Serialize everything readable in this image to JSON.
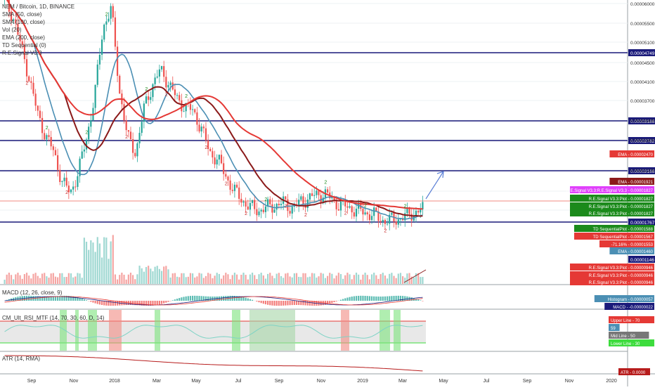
{
  "legend": [
    "NEM / Bitcoin, 1D, BINANCE",
    "SMA (50, close)",
    "SMA (100, close)",
    "Vol (20)",
    "EMA (200, close)",
    "TD Sequential (0)",
    "R.E.Signal V3.3"
  ],
  "macd_legend": "MACD (12, 26, close, 9)",
  "rsi_legend": "CM_Ult_RSI_MTF (14, 70, 30, 60, D, 14)",
  "atr_legend": "ATR (14, RMA)",
  "colors": {
    "up": "#26a69a",
    "down": "#ef5350",
    "hline": "#1a1a7a",
    "sma50": "#4b8fb4",
    "sma100": "#8b1a1a",
    "ema200": "#e53935",
    "rsi": "#7ed3c5"
  },
  "chart_data": {
    "type": "candlestick",
    "x_ticks": [
      "Sep",
      "Nov",
      "2018",
      "Mar",
      "May",
      "Jul",
      "Sep",
      "Nov",
      "2019",
      "Mar",
      "May",
      "Jul",
      "Sep",
      "Nov",
      "2020"
    ],
    "y_ticks": [
      "0.00006000",
      "0.00005500",
      "0.00005100",
      "0.00004500",
      "0.00004100",
      "0.00003700",
      "0.00003300",
      "0.00002900",
      "0.00002200",
      "0.00001800",
      "0.00001400"
    ],
    "horizontal_levels": [
      "0.00004749",
      "0.00003186",
      "0.00002782",
      "0.00002166",
      "0.00001767",
      "0.00001146"
    ],
    "price_labels": [
      {
        "text": "EMA - 0.00002470",
        "color": "#e53935"
      },
      {
        "text": "EMA - 0.00001921",
        "color": "#8b1a1a"
      },
      {
        "text": "R.E.Signal V3.3:R.E.Signal V3.3 - 0.00001827",
        "color": "#e040fb"
      },
      {
        "text": "R.E.Signal V3.3:Plot - 0.00001827",
        "color": "#1b8a1b"
      },
      {
        "text": "R.E.Signal V3.3:Plot - 0.00001827",
        "color": "#1b8a1b"
      },
      {
        "text": "R.E.Signal V3.3:Plot - 0.00001827",
        "color": "#1b8a1b"
      },
      {
        "text": "TD SequentialPlot - 0.00001588",
        "color": "#1b8a1b"
      },
      {
        "text": "TD SequentialPlot - 0.00001567",
        "color": "#e53935"
      },
      {
        "text": "-71.16% - 0.00001553",
        "color": "#e53935"
      },
      {
        "text": "EMA - 0.00001460",
        "color": "#4b8fb4"
      },
      {
        "text": "R.E.Signal V3.3:Plot - 0.00000946",
        "color": "#e53935"
      },
      {
        "text": "R.E.Signal V3.3:Plot - 0.00000946",
        "color": "#e53935"
      },
      {
        "text": "R.E.Signal V3.3:Plot - 0.00000946",
        "color": "#e53935"
      }
    ],
    "macd_labels": [
      {
        "text": "Histogram - 0.00000057",
        "color": "#4b8fb4"
      },
      {
        "text": "MACD - -0.00000022",
        "color": "#1a1a7a"
      }
    ],
    "rsi_labels": [
      {
        "text": "Upper Line - 70",
        "color": "#e53935"
      },
      {
        "text": "59",
        "color": "#4b8fb4"
      },
      {
        "text": "Mid Line - 50",
        "color": "#777777"
      },
      {
        "text": "Lower Line - 30",
        "color": "#3ddc3d"
      }
    ],
    "atr_labels": [
      {
        "text": "ATR - 0.0000",
        "color": "#b71c1c"
      }
    ],
    "candle_close_series": [
      6.1e-05,
      5.85e-05,
      5.2e-05,
      4.55e-05,
      3.8e-05,
      3.35e-05,
      3e-05,
      2.4e-05,
      2.15e-05,
      2.6e-05,
      3.3e-05,
      4.2e-05,
      5.6e-05,
      6e-05,
      4.3e-05,
      3.3e-05,
      3e-05,
      3.9e-05,
      4.4e-05,
      4.7e-05,
      4.45e-05,
      4.1e-05,
      3.95e-05,
      3.85e-05,
      3.5e-05,
      3e-05,
      2.85e-05,
      2.5e-05,
      2.2e-05,
      2e-05,
      1.85e-05,
      1.8e-05,
      1.85e-05,
      1.9e-05,
      1.95e-05,
      1.85e-05,
      1.95e-05,
      2.05e-05,
      2.1e-05,
      2.15e-05,
      2e-05,
      1.9e-05,
      1.85e-05,
      1.8e-05,
      1.75e-05,
      1.7e-05,
      1.6e-05,
      1.58e-05,
      1.62e-05,
      1.68e-05,
      1.75e-05,
      1.82e-05
    ]
  }
}
